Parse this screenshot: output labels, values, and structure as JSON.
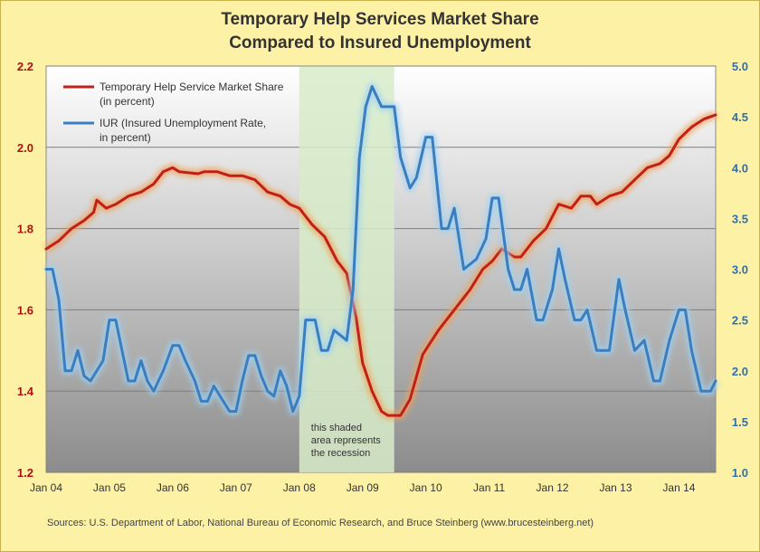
{
  "title_line1": "Temporary Help Services Market Share",
  "title_line2": "Compared to Insured Unemployment",
  "source": "Sources: U.S. Department of Labor, National Bureau of Economic Research, and Bruce Steinberg (www.brucesteinberg.net)",
  "colors": {
    "background": "#fdf1a6",
    "red_series": "#c0201a",
    "blue_series": "#3a7ec0",
    "recession": "#d7ecc8",
    "left_axis_text": "#b01010",
    "right_axis_text": "#2f6fb0"
  },
  "chart_data": {
    "type": "line",
    "x_ticks": [
      "Jan 04",
      "Jan 05",
      "Jan 06",
      "Jan 07",
      "Jan 08",
      "Jan 09",
      "Jan 10",
      "Jan 11",
      "Jan 12",
      "Jan 13",
      "Jan 14"
    ],
    "xlim": [
      2004.0,
      2014.58
    ],
    "y_left": {
      "lim": [
        1.2,
        2.2
      ],
      "ticks": [
        "1.2",
        "1.4",
        "1.6",
        "1.8",
        "2.0",
        "2.2"
      ]
    },
    "y_right": {
      "lim": [
        1.0,
        5.0
      ],
      "ticks": [
        "1.0",
        "1.5",
        "2.0",
        "2.5",
        "3.0",
        "3.5",
        "4.0",
        "4.5",
        "5.0"
      ]
    },
    "recession": {
      "start": 2008.0,
      "end": 2009.5
    },
    "annotation": [
      "this shaded",
      "area represents",
      "the recession"
    ],
    "legend_position": "top-left",
    "series": [
      {
        "name": "Temporary Help Service Market Share",
        "name2": "(in percent)",
        "axis": "left",
        "points": [
          [
            2004.0,
            1.75
          ],
          [
            2004.2,
            1.77
          ],
          [
            2004.4,
            1.8
          ],
          [
            2004.6,
            1.82
          ],
          [
            2004.75,
            1.84
          ],
          [
            2004.8,
            1.87
          ],
          [
            2004.95,
            1.85
          ],
          [
            2005.1,
            1.86
          ],
          [
            2005.3,
            1.88
          ],
          [
            2005.5,
            1.89
          ],
          [
            2005.7,
            1.91
          ],
          [
            2005.85,
            1.94
          ],
          [
            2006.0,
            1.95
          ],
          [
            2006.1,
            1.94
          ],
          [
            2006.4,
            1.935
          ],
          [
            2006.5,
            1.94
          ],
          [
            2006.7,
            1.94
          ],
          [
            2006.9,
            1.93
          ],
          [
            2007.1,
            1.93
          ],
          [
            2007.3,
            1.92
          ],
          [
            2007.5,
            1.89
          ],
          [
            2007.7,
            1.88
          ],
          [
            2007.85,
            1.86
          ],
          [
            2008.0,
            1.85
          ],
          [
            2008.2,
            1.81
          ],
          [
            2008.4,
            1.78
          ],
          [
            2008.6,
            1.72
          ],
          [
            2008.75,
            1.69
          ],
          [
            2008.9,
            1.58
          ],
          [
            2009.0,
            1.47
          ],
          [
            2009.15,
            1.4
          ],
          [
            2009.3,
            1.35
          ],
          [
            2009.4,
            1.34
          ],
          [
            2009.6,
            1.34
          ],
          [
            2009.75,
            1.38
          ],
          [
            2009.95,
            1.49
          ],
          [
            2010.2,
            1.55
          ],
          [
            2010.45,
            1.6
          ],
          [
            2010.7,
            1.65
          ],
          [
            2010.9,
            1.7
          ],
          [
            2011.05,
            1.72
          ],
          [
            2011.2,
            1.75
          ],
          [
            2011.4,
            1.73
          ],
          [
            2011.5,
            1.73
          ],
          [
            2011.7,
            1.77
          ],
          [
            2011.9,
            1.8
          ],
          [
            2012.1,
            1.86
          ],
          [
            2012.3,
            1.85
          ],
          [
            2012.45,
            1.88
          ],
          [
            2012.6,
            1.88
          ],
          [
            2012.7,
            1.86
          ],
          [
            2012.9,
            1.88
          ],
          [
            2013.1,
            1.89
          ],
          [
            2013.3,
            1.92
          ],
          [
            2013.5,
            1.95
          ],
          [
            2013.7,
            1.96
          ],
          [
            2013.85,
            1.98
          ],
          [
            2014.0,
            2.02
          ],
          [
            2014.2,
            2.05
          ],
          [
            2014.4,
            2.07
          ],
          [
            2014.58,
            2.08
          ]
        ]
      },
      {
        "name": "IUR (Insured Unemployment Rate,",
        "name2": "in percent)",
        "axis": "right",
        "points": [
          [
            2004.0,
            3.0
          ],
          [
            2004.1,
            3.0
          ],
          [
            2004.2,
            2.7
          ],
          [
            2004.3,
            2.0
          ],
          [
            2004.4,
            2.0
          ],
          [
            2004.5,
            2.2
          ],
          [
            2004.6,
            1.95
          ],
          [
            2004.7,
            1.9
          ],
          [
            2004.9,
            2.1
          ],
          [
            2005.0,
            2.5
          ],
          [
            2005.1,
            2.5
          ],
          [
            2005.2,
            2.2
          ],
          [
            2005.3,
            1.9
          ],
          [
            2005.4,
            1.9
          ],
          [
            2005.5,
            2.1
          ],
          [
            2005.6,
            1.9
          ],
          [
            2005.7,
            1.8
          ],
          [
            2005.85,
            2.0
          ],
          [
            2006.0,
            2.25
          ],
          [
            2006.1,
            2.25
          ],
          [
            2006.2,
            2.1
          ],
          [
            2006.35,
            1.9
          ],
          [
            2006.45,
            1.7
          ],
          [
            2006.55,
            1.7
          ],
          [
            2006.65,
            1.85
          ],
          [
            2006.8,
            1.7
          ],
          [
            2006.9,
            1.6
          ],
          [
            2007.0,
            1.6
          ],
          [
            2007.1,
            1.9
          ],
          [
            2007.2,
            2.15
          ],
          [
            2007.3,
            2.15
          ],
          [
            2007.4,
            1.95
          ],
          [
            2007.5,
            1.8
          ],
          [
            2007.6,
            1.75
          ],
          [
            2007.7,
            2.0
          ],
          [
            2007.8,
            1.85
          ],
          [
            2007.9,
            1.6
          ],
          [
            2008.0,
            1.75
          ],
          [
            2008.1,
            2.5
          ],
          [
            2008.25,
            2.5
          ],
          [
            2008.35,
            2.2
          ],
          [
            2008.45,
            2.2
          ],
          [
            2008.55,
            2.4
          ],
          [
            2008.65,
            2.35
          ],
          [
            2008.75,
            2.3
          ],
          [
            2008.85,
            2.8
          ],
          [
            2008.95,
            4.1
          ],
          [
            2009.05,
            4.6
          ],
          [
            2009.15,
            4.8
          ],
          [
            2009.3,
            4.6
          ],
          [
            2009.5,
            4.6
          ],
          [
            2009.6,
            4.1
          ],
          [
            2009.75,
            3.8
          ],
          [
            2009.85,
            3.9
          ],
          [
            2010.0,
            4.3
          ],
          [
            2010.1,
            4.3
          ],
          [
            2010.25,
            3.4
          ],
          [
            2010.35,
            3.4
          ],
          [
            2010.45,
            3.6
          ],
          [
            2010.6,
            3.0
          ],
          [
            2010.8,
            3.1
          ],
          [
            2010.95,
            3.3
          ],
          [
            2011.05,
            3.7
          ],
          [
            2011.15,
            3.7
          ],
          [
            2011.3,
            3.0
          ],
          [
            2011.4,
            2.8
          ],
          [
            2011.5,
            2.8
          ],
          [
            2011.6,
            3.0
          ],
          [
            2011.75,
            2.5
          ],
          [
            2011.85,
            2.5
          ],
          [
            2012.0,
            2.8
          ],
          [
            2012.1,
            3.2
          ],
          [
            2012.2,
            2.9
          ],
          [
            2012.35,
            2.5
          ],
          [
            2012.45,
            2.5
          ],
          [
            2012.55,
            2.6
          ],
          [
            2012.7,
            2.2
          ],
          [
            2012.9,
            2.2
          ],
          [
            2013.05,
            2.9
          ],
          [
            2013.15,
            2.6
          ],
          [
            2013.3,
            2.2
          ],
          [
            2013.45,
            2.3
          ],
          [
            2013.6,
            1.9
          ],
          [
            2013.7,
            1.9
          ],
          [
            2013.85,
            2.3
          ],
          [
            2014.0,
            2.6
          ],
          [
            2014.1,
            2.6
          ],
          [
            2014.2,
            2.2
          ],
          [
            2014.35,
            1.8
          ],
          [
            2014.5,
            1.8
          ],
          [
            2014.58,
            1.9
          ]
        ]
      }
    ]
  }
}
